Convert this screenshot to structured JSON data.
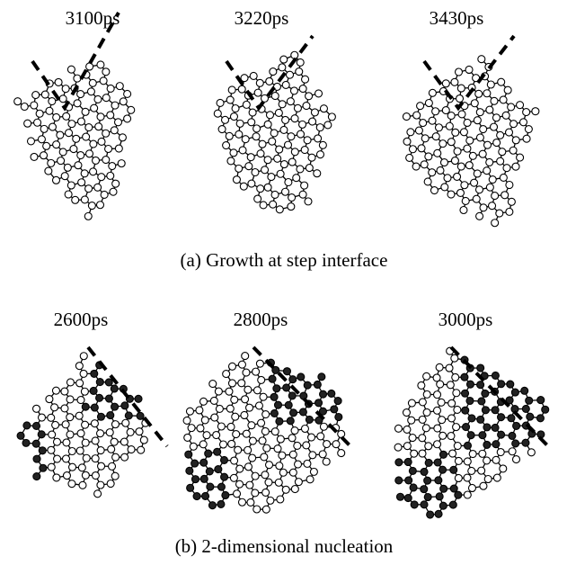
{
  "panels": [
    {
      "caption": "(a) Growth at step interface",
      "snapshots": [
        "3100ps",
        "3220ps",
        "3430ps"
      ]
    },
    {
      "caption": "(b) 2-dimensional nucleation",
      "snapshots": [
        "2600ps",
        "2800ps",
        "3000ps"
      ]
    }
  ]
}
